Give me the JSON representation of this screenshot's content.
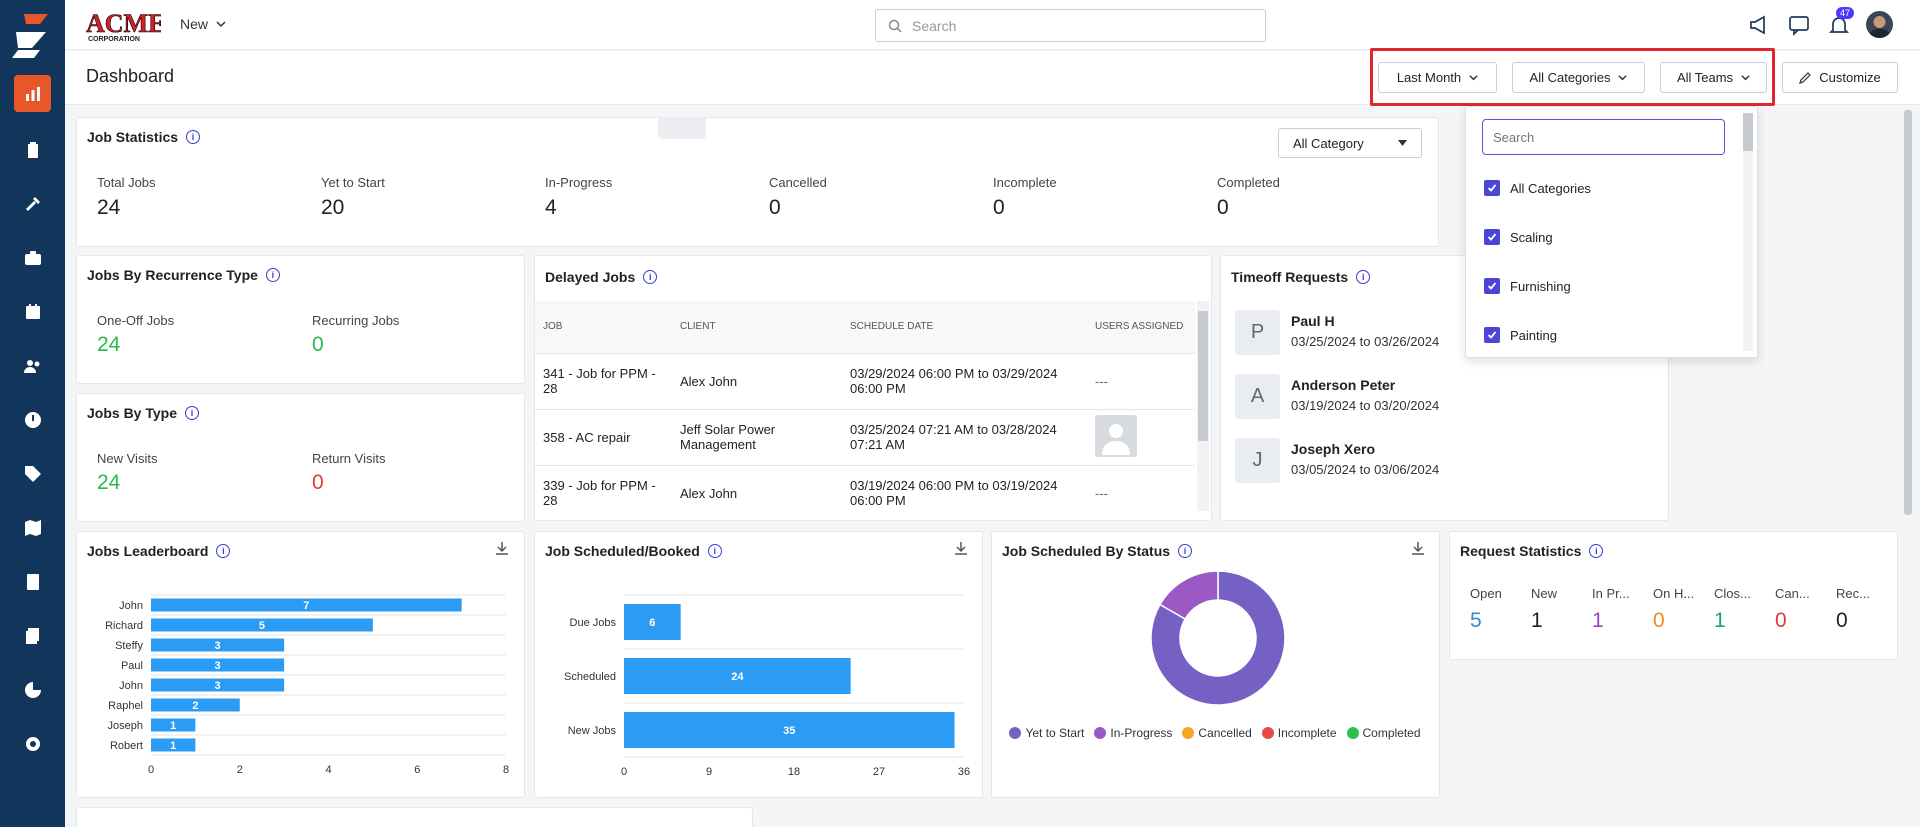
{
  "topbar": {
    "new_label": "New",
    "search_placeholder": "Search",
    "notif_count": "47"
  },
  "header": {
    "title": "Dashboard",
    "period": "Last Month",
    "categories": "All Categories",
    "teams": "All Teams",
    "customize": "Customize"
  },
  "dropdown": {
    "search_placeholder": "Search",
    "options": [
      "All Categories",
      "Scaling",
      "Furnishing",
      "Painting"
    ]
  },
  "job_stats": {
    "title": "Job Statistics",
    "filter": "All Category",
    "items": [
      {
        "label": "Total Jobs",
        "value": "24"
      },
      {
        "label": "Yet to Start",
        "value": "20"
      },
      {
        "label": "In-Progress",
        "value": "4"
      },
      {
        "label": "Cancelled",
        "value": "0"
      },
      {
        "label": "Incomplete",
        "value": "0"
      },
      {
        "label": "Completed",
        "value": "0"
      }
    ]
  },
  "recurrence": {
    "title": "Jobs By Recurrence Type",
    "one_off_label": "One-Off Jobs",
    "one_off_value": "24",
    "recurring_label": "Recurring Jobs",
    "recurring_value": "0"
  },
  "by_type": {
    "title": "Jobs By Type",
    "new_label": "New Visits",
    "new_value": "24",
    "return_label": "Return Visits",
    "return_value": "0"
  },
  "delayed": {
    "title": "Delayed Jobs",
    "columns": [
      "JOB",
      "CLIENT",
      "SCHEDULE DATE",
      "USERS ASSIGNED"
    ],
    "rows": [
      {
        "job": "341 - Job for PPM - 28",
        "client": "Alex John",
        "date": "03/29/2024 06:00 PM to 03/29/2024 06:00 PM",
        "users": "---"
      },
      {
        "job": "358 - AC repair",
        "client": "Jeff Solar Power Management",
        "date": "03/25/2024 07:21 AM to 03/28/2024 07:21 AM",
        "users": ""
      },
      {
        "job": "339 - Job for PPM - 28",
        "client": "Alex John",
        "date": "03/19/2024 06:00 PM to 03/19/2024 06:00 PM",
        "users": "---"
      }
    ]
  },
  "timeoff": {
    "title": "Timeoff Requests",
    "items": [
      {
        "initial": "P",
        "name": "Paul H",
        "dates": "03/25/2024 to 03/26/2024"
      },
      {
        "initial": "A",
        "name": "Anderson Peter",
        "dates": "03/19/2024 to 03/20/2024"
      },
      {
        "initial": "J",
        "name": "Joseph Xero",
        "dates": "03/05/2024 to 03/06/2024"
      }
    ]
  },
  "leaderboard": {
    "title": "Jobs Leaderboard"
  },
  "scheduled": {
    "title": "Job Scheduled/Booked"
  },
  "by_status": {
    "title": "Job Scheduled By Status",
    "legend": [
      {
        "name": "Yet to Start",
        "color": "#7560c4"
      },
      {
        "name": "In-Progress",
        "color": "#9b59c6"
      },
      {
        "name": "Cancelled",
        "color": "#f5a623"
      },
      {
        "name": "Incomplete",
        "color": "#e84a4a"
      },
      {
        "name": "Completed",
        "color": "#2ec04f"
      }
    ]
  },
  "request_stats": {
    "title": "Request Statistics",
    "items": [
      {
        "label": "Open",
        "value": "5",
        "color": "#2d8bd6"
      },
      {
        "label": "New",
        "value": "1",
        "color": "#222222"
      },
      {
        "label": "In Pr...",
        "value": "1",
        "color": "#9b44c6"
      },
      {
        "label": "On H...",
        "value": "0",
        "color": "#f08a24"
      },
      {
        "label": "Clos...",
        "value": "1",
        "color": "#1aa36b"
      },
      {
        "label": "Can...",
        "value": "0",
        "color": "#e03b3b"
      },
      {
        "label": "Rec...",
        "value": "0",
        "color": "#222222"
      }
    ]
  },
  "chart_data": [
    {
      "type": "bar",
      "orientation": "horizontal",
      "title": "Jobs Leaderboard",
      "categories": [
        "John",
        "Richard",
        "Steffy",
        "Paul",
        "John",
        "Raphel",
        "Joseph",
        "Robert"
      ],
      "values": [
        7,
        5,
        3,
        3,
        3,
        2,
        1,
        1
      ],
      "xlim": [
        0,
        8
      ],
      "xticks": [
        0,
        2,
        4,
        6,
        8
      ],
      "color": "#2b9bf4"
    },
    {
      "type": "bar",
      "orientation": "horizontal",
      "title": "Job Scheduled/Booked",
      "categories": [
        "Due Jobs",
        "Scheduled",
        "New Jobs"
      ],
      "values": [
        6,
        24,
        35
      ],
      "xlim": [
        0,
        36
      ],
      "xticks": [
        0,
        9,
        18,
        27,
        36
      ],
      "color": "#2b9bf4"
    },
    {
      "type": "pie",
      "donut": true,
      "title": "Job Scheduled By Status",
      "categories": [
        "Yet to Start",
        "In-Progress",
        "Cancelled",
        "Incomplete",
        "Completed"
      ],
      "values": [
        20,
        4,
        0,
        0,
        0
      ]
    }
  ]
}
